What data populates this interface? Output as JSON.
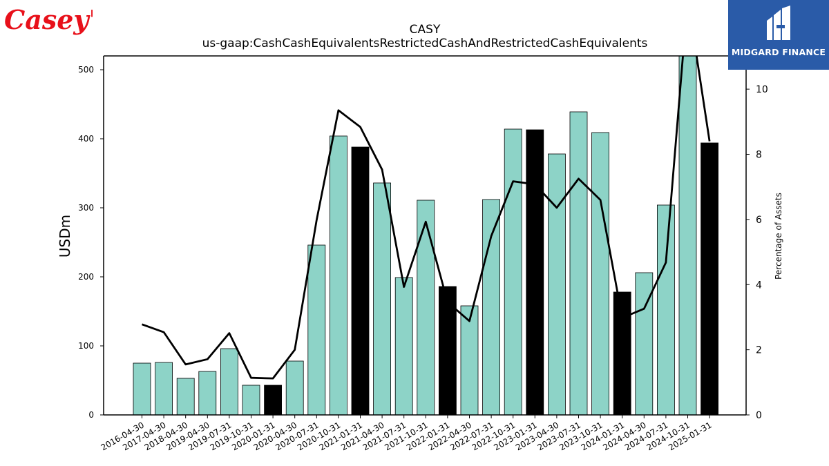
{
  "header": {
    "ticker": "CASY",
    "concept": "us-gaap:CashCashEquivalentsRestrictedCashAndRestrictedCashEquivalents"
  },
  "logos": {
    "left_text": "Casey's",
    "right_text": "MIDGARD FINANCE"
  },
  "colors": {
    "bar_annual": "#8dd3c7",
    "bar_q4": "#000000",
    "line": "#000000",
    "logo_left": "#e8101a",
    "logo_right_bg": "#2a5ba8"
  },
  "chart_data": {
    "type": "bar",
    "title": "CASY",
    "subtitle": "us-gaap:CashCashEquivalentsRestrictedCashAndRestrictedCashEquivalents",
    "ylabel": "USDm",
    "y2label": "Percentage of Assets",
    "ylim": [
      0,
      520
    ],
    "y2lim": [
      0,
      11.02
    ],
    "yticks": [
      0,
      100,
      200,
      300,
      400,
      500
    ],
    "y2ticks": [
      0,
      2,
      4,
      6,
      8,
      10
    ],
    "categories": [
      "2016-04-30",
      "2017-04-30",
      "2018-04-30",
      "2019-04-30",
      "2019-07-31",
      "2019-10-31",
      "2020-01-31",
      "2020-04-30",
      "2020-07-31",
      "2020-10-31",
      "2021-01-31",
      "2021-04-30",
      "2021-07-31",
      "2021-10-31",
      "2022-01-31",
      "2022-04-30",
      "2022-07-31",
      "2022-10-31",
      "2023-01-31",
      "2023-04-30",
      "2023-07-31",
      "2023-10-31",
      "2024-01-31",
      "2024-04-30",
      "2024-07-31",
      "2024-10-31",
      "2025-01-31"
    ],
    "series": [
      {
        "type": "bar",
        "values": [
          75,
          76,
          53,
          63,
          96,
          43,
          43,
          78,
          246,
          404,
          388,
          336,
          199,
          311,
          186,
          158,
          312,
          414,
          413,
          378,
          439,
          409,
          178,
          206,
          304,
          520,
          394
        ],
        "highlight": [
          false,
          false,
          false,
          false,
          false,
          false,
          true,
          false,
          false,
          false,
          true,
          false,
          false,
          false,
          true,
          false,
          false,
          false,
          true,
          false,
          false,
          false,
          true,
          false,
          false,
          false,
          true
        ]
      },
      {
        "type": "line",
        "axis": "right",
        "values": [
          2.78,
          2.54,
          1.55,
          1.71,
          2.51,
          1.14,
          1.12,
          2.0,
          5.98,
          9.35,
          8.84,
          7.53,
          3.93,
          5.93,
          3.46,
          2.88,
          5.49,
          7.17,
          7.08,
          6.36,
          7.25,
          6.6,
          2.98,
          3.26,
          4.68,
          12.8,
          8.4
        ]
      }
    ]
  }
}
